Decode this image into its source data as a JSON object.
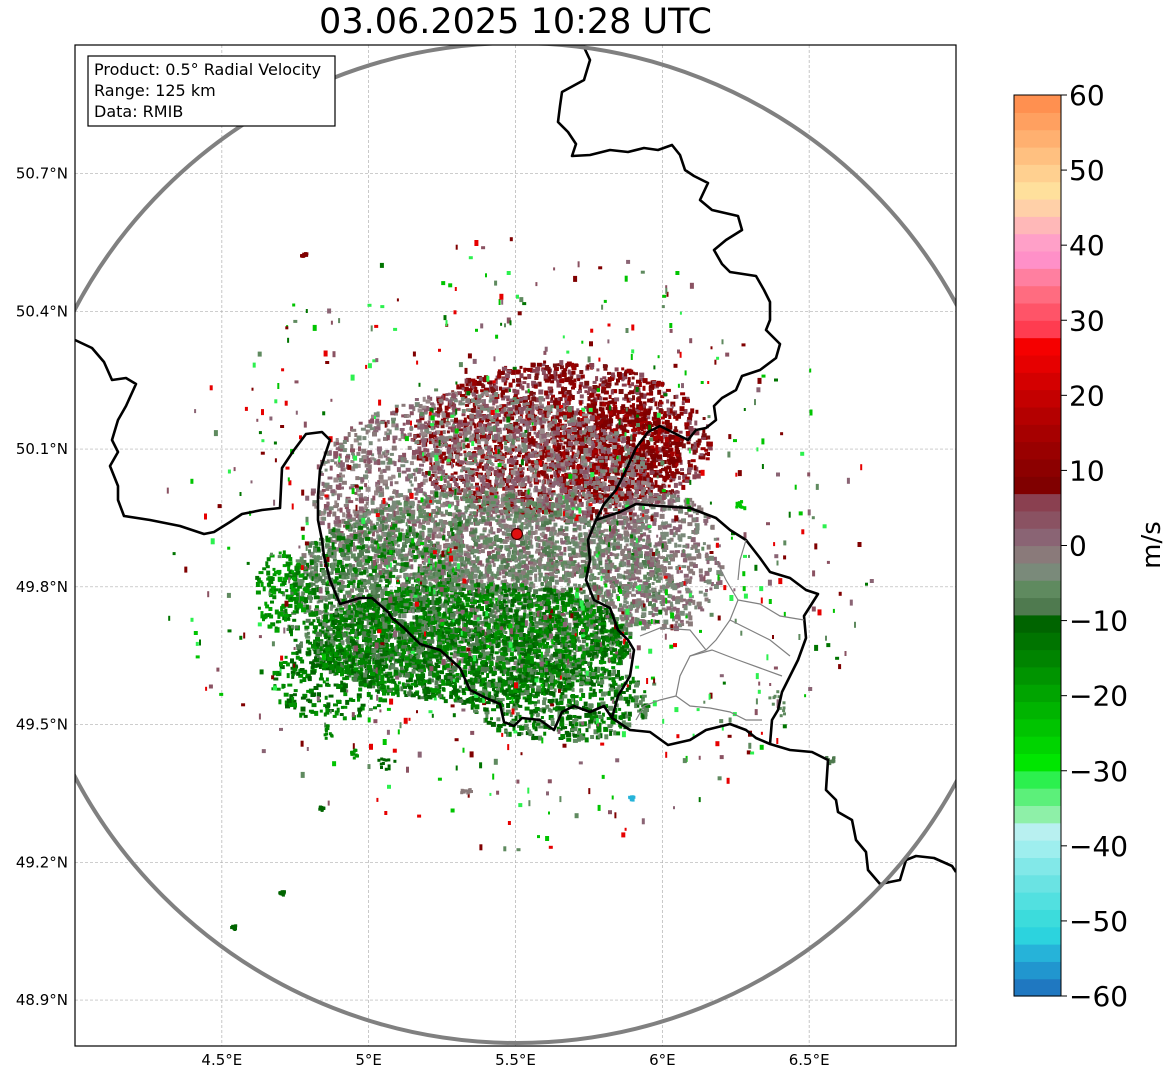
{
  "title": "03.06.2025 10:28 UTC",
  "info_box": [
    "Product: 0.5° Radial Velocity",
    "Range: 125 km",
    "Data: RMIB"
  ],
  "map": {
    "lon_range": [
      4.0,
      7.0
    ],
    "lat_range": [
      48.8,
      50.98
    ],
    "lon_ticks": [
      {
        "value": 4.5,
        "label": "4.5°E"
      },
      {
        "value": 5.0,
        "label": "5°E"
      },
      {
        "value": 5.5,
        "label": "5.5°E"
      },
      {
        "value": 6.0,
        "label": "6°E"
      },
      {
        "value": 6.5,
        "label": "6.5°E"
      }
    ],
    "lat_ticks": [
      {
        "value": 48.9,
        "label": "48.9°N"
      },
      {
        "value": 49.2,
        "label": "49.2°N"
      },
      {
        "value": 49.5,
        "label": "49.5°N"
      },
      {
        "value": 49.8,
        "label": "49.8°N"
      },
      {
        "value": 50.1,
        "label": "50.1°N"
      },
      {
        "value": 50.4,
        "label": "50.4°N"
      },
      {
        "value": 50.7,
        "label": "50.7°N"
      }
    ],
    "radar_site": {
      "lon": 5.505,
      "lat": 49.915
    },
    "range_km": 125,
    "grid": true
  },
  "colorbar": {
    "unit": "m/s",
    "vmin": -60,
    "vmax": 60,
    "ticks": [
      {
        "value": 60,
        "label": "60"
      },
      {
        "value": 50,
        "label": "50"
      },
      {
        "value": 40,
        "label": "40"
      },
      {
        "value": 30,
        "label": "30"
      },
      {
        "value": 20,
        "label": "20"
      },
      {
        "value": 10,
        "label": "10"
      },
      {
        "value": 0,
        "label": "0"
      },
      {
        "value": -10,
        "label": "−10"
      },
      {
        "value": -20,
        "label": "−20"
      },
      {
        "value": -30,
        "label": "−30"
      },
      {
        "value": -40,
        "label": "−40"
      },
      {
        "value": -50,
        "label": "−50"
      },
      {
        "value": -60,
        "label": "−60"
      }
    ],
    "colors_bottom_to_top": [
      "#1f78c1",
      "#2196cf",
      "#26b3d9",
      "#2cd3de",
      "#3cdcdc",
      "#52e0e0",
      "#6ae3e3",
      "#82e8e8",
      "#9eeeee",
      "#b8f0f0",
      "#8ef0a8",
      "#5cf07a",
      "#2cf04e",
      "#00e600",
      "#00d400",
      "#00c400",
      "#00b400",
      "#00a400",
      "#009400",
      "#008400",
      "#007400",
      "#006400",
      "#4f7a4f",
      "#5f8a5f",
      "#7a8a7a",
      "#8a7a7a",
      "#8a6474",
      "#8a5262",
      "#8a4050",
      "#800000",
      "#8c0000",
      "#990000",
      "#a60000",
      "#b40000",
      "#c40000",
      "#d40000",
      "#e60000",
      "#f50000",
      "#ff3c50",
      "#ff5468",
      "#ff6c80",
      "#ff7fa0",
      "#ff90c8",
      "#ffa0c8",
      "#ffb8b8",
      "#ffd0a8",
      "#ffe09c",
      "#ffd090",
      "#ffc080",
      "#ffb070",
      "#ffa060",
      "#ff9050"
    ]
  }
}
